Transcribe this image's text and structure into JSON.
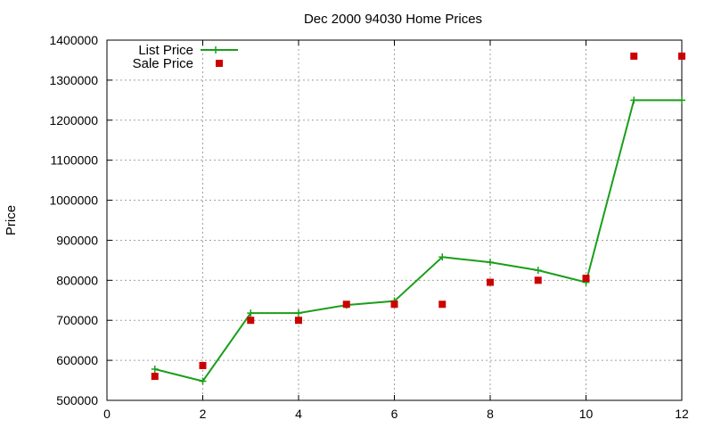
{
  "chart_data": {
    "type": "line",
    "title": "Dec 2000 94030 Home Prices",
    "xlabel": "",
    "ylabel": "Price",
    "xlim": [
      0,
      12
    ],
    "ylim": [
      500000,
      1400000
    ],
    "xticks": [
      "0",
      "2",
      "4",
      "6",
      "8",
      "10",
      "12"
    ],
    "yticks": [
      "500000",
      "600000",
      "700000",
      "800000",
      "900000",
      "1000000",
      "1100000",
      "1200000",
      "1300000",
      "1400000"
    ],
    "grid": true,
    "legend_position": "top-left",
    "series": [
      {
        "name": "List Price",
        "style": "line+points",
        "marker": "plus",
        "color": "#1a9e1a",
        "x": [
          1,
          2,
          3,
          4,
          5,
          6,
          7,
          8,
          9,
          10,
          11,
          12
        ],
        "y": [
          578000,
          548000,
          718000,
          718000,
          738000,
          748000,
          858000,
          845000,
          825000,
          795000,
          1250000,
          1250000
        ]
      },
      {
        "name": "Sale Price",
        "style": "points",
        "marker": "square",
        "color": "#cc0000",
        "x": [
          1,
          2,
          3,
          4,
          5,
          6,
          7,
          8,
          9,
          10,
          11,
          12
        ],
        "y": [
          560000,
          587000,
          700000,
          700000,
          740000,
          740000,
          740000,
          795000,
          800000,
          805000,
          1360000,
          1360000
        ]
      }
    ]
  }
}
